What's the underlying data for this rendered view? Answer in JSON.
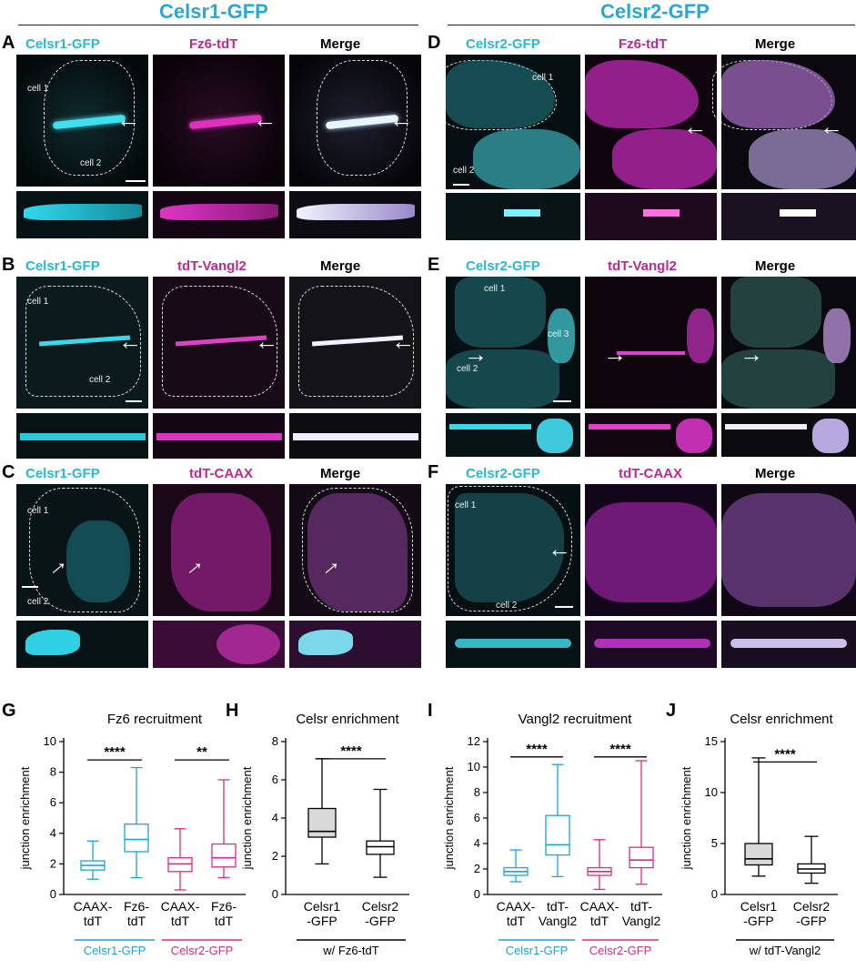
{
  "headers": {
    "left": "Celsr1-GFP",
    "right": "Celsr2-GFP"
  },
  "panels": {
    "A": {
      "letter": "A",
      "captions": [
        "Celsr1-GFP",
        "Fz6-tdT",
        "Merge"
      ],
      "cells": [
        "cell 1",
        "cell 2"
      ]
    },
    "B": {
      "letter": "B",
      "captions": [
        "Celsr1-GFP",
        "tdT-Vangl2",
        "Merge"
      ],
      "cells": [
        "cell 1",
        "cell 2"
      ]
    },
    "C": {
      "letter": "C",
      "captions": [
        "Celsr1-GFP",
        "tdT-CAAX",
        "Merge"
      ],
      "cells": [
        "cell 1",
        "cell 2"
      ]
    },
    "D": {
      "letter": "D",
      "captions": [
        "Celsr2-GFP",
        "Fz6-tdT",
        "Merge"
      ],
      "cells": [
        "cell 1",
        "cell 2"
      ]
    },
    "E": {
      "letter": "E",
      "captions": [
        "Celsr2-GFP",
        "tdT-Vangl2",
        "Merge"
      ],
      "cells": [
        "cell 1",
        "cell 2",
        "cell 3"
      ]
    },
    "F": {
      "letter": "F",
      "captions": [
        "Celsr2-GFP",
        "tdT-CAAX",
        "Merge"
      ],
      "cells": [
        "cell 1",
        "cell 2"
      ]
    }
  },
  "colors": {
    "cyan": "#29b8d6",
    "magenta": "#c0288f",
    "celsr1": "#1aa3e0",
    "celsr2": "#e0288a"
  },
  "chart_data": [
    {
      "id": "G",
      "type": "box",
      "title": "Fz6 recruitment",
      "ylabel": "junction enrichment",
      "ylim": [
        0,
        10
      ],
      "yticks": [
        0,
        2,
        4,
        6,
        8,
        10
      ],
      "categories": [
        "CAAX-\ntdT",
        "Fz6-\ntdT",
        "CAAX-\ntdT",
        "Fz6-\ntdT"
      ],
      "groups": [
        {
          "label": "Celsr1-GFP",
          "color": "#1aa3e0",
          "cats": [
            0,
            1
          ]
        },
        {
          "label": "Celsr2-GFP",
          "color": "#e0288a",
          "cats": [
            2,
            3
          ]
        }
      ],
      "boxes": [
        {
          "min": 1.0,
          "q1": 1.6,
          "median": 1.9,
          "q3": 2.2,
          "max": 3.5
        },
        {
          "min": 1.1,
          "q1": 2.8,
          "median": 3.6,
          "q3": 4.6,
          "max": 8.3
        },
        {
          "min": 0.3,
          "q1": 1.5,
          "median": 2.0,
          "q3": 2.4,
          "max": 4.3
        },
        {
          "min": 1.1,
          "q1": 1.8,
          "median": 2.4,
          "q3": 3.3,
          "max": 7.5
        }
      ],
      "sig": [
        {
          "a": 0,
          "b": 1,
          "y": 8.8,
          "text": "****"
        },
        {
          "a": 2,
          "b": 3,
          "y": 8.8,
          "text": "**"
        }
      ]
    },
    {
      "id": "H",
      "type": "box",
      "title": "Celsr enrichment",
      "ylabel": "junction enrichment",
      "ylim": [
        0,
        8
      ],
      "yticks": [
        0,
        2,
        4,
        6,
        8
      ],
      "categories": [
        "Celsr1\n-GFP",
        "Celsr2\n-GFP"
      ],
      "groups": [
        {
          "label": "w/ Fz6-tdT",
          "color": "#000000",
          "cats": [
            0,
            1
          ]
        }
      ],
      "boxes": [
        {
          "min": 1.6,
          "q1": 3.0,
          "median": 3.3,
          "q3": 4.5,
          "max": 7.1
        },
        {
          "min": 0.9,
          "q1": 2.1,
          "median": 2.5,
          "q3": 2.8,
          "max": 5.5
        }
      ],
      "sig": [
        {
          "a": 0,
          "b": 1,
          "y": 7.1,
          "text": "****"
        }
      ]
    },
    {
      "id": "I",
      "type": "box",
      "title": "Vangl2 recruitment",
      "ylabel": "junction enrichment",
      "ylim": [
        0,
        12
      ],
      "yticks": [
        0,
        2,
        4,
        6,
        8,
        10,
        12
      ],
      "categories": [
        "CAAX-\ntdT",
        "tdT-\nVangl2",
        "CAAX-\ntdT",
        "tdT-\nVangl2"
      ],
      "groups": [
        {
          "label": "Celsr1-GFP",
          "color": "#1aa3e0",
          "cats": [
            0,
            1
          ]
        },
        {
          "label": "Celsr2-GFP",
          "color": "#e0288a",
          "cats": [
            2,
            3
          ]
        }
      ],
      "boxes": [
        {
          "min": 1.0,
          "q1": 1.5,
          "median": 1.8,
          "q3": 2.1,
          "max": 3.5
        },
        {
          "min": 1.4,
          "q1": 3.1,
          "median": 3.9,
          "q3": 6.2,
          "max": 10.2
        },
        {
          "min": 0.4,
          "q1": 1.5,
          "median": 1.8,
          "q3": 2.1,
          "max": 4.3
        },
        {
          "min": 0.8,
          "q1": 2.1,
          "median": 2.7,
          "q3": 3.7,
          "max": 10.5
        }
      ],
      "sig": [
        {
          "a": 0,
          "b": 1,
          "y": 10.8,
          "text": "****"
        },
        {
          "a": 2,
          "b": 3,
          "y": 10.8,
          "text": "****"
        }
      ]
    },
    {
      "id": "J",
      "type": "box",
      "title": "Celsr enrichment",
      "ylabel": "junction enrichment",
      "ylim": [
        0,
        15
      ],
      "yticks": [
        0,
        5,
        10,
        15
      ],
      "categories": [
        "Celsr1\n-GFP",
        "Celsr2\n-GFP"
      ],
      "groups": [
        {
          "label": "w/ tdT-Vangl2",
          "color": "#000000",
          "cats": [
            0,
            1
          ]
        }
      ],
      "boxes": [
        {
          "min": 1.8,
          "q1": 2.9,
          "median": 3.5,
          "q3": 5.0,
          "max": 13.4
        },
        {
          "min": 1.1,
          "q1": 2.1,
          "median": 2.5,
          "q3": 3.0,
          "max": 5.7
        }
      ],
      "sig": [
        {
          "a": 0,
          "b": 1,
          "y": 13.0,
          "text": "****"
        }
      ]
    }
  ]
}
